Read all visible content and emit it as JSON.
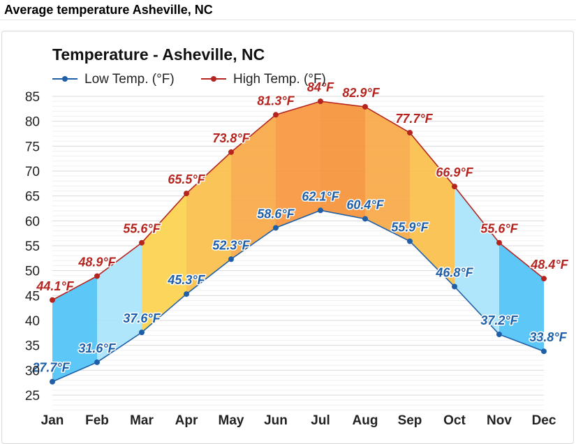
{
  "page": {
    "heading": "Average temperature Asheville, NC"
  },
  "chart_data": {
    "type": "line",
    "title": "Temperature - Asheville, NC",
    "categories": [
      "Jan",
      "Feb",
      "Mar",
      "Apr",
      "May",
      "Jun",
      "Jul",
      "Aug",
      "Sep",
      "Oct",
      "Nov",
      "Dec"
    ],
    "series": [
      {
        "name": "Low Temp. (°F)",
        "color": "#1e5fa8",
        "values": [
          27.7,
          31.6,
          37.6,
          45.3,
          52.3,
          58.6,
          62.1,
          60.4,
          55.9,
          46.8,
          37.2,
          33.8
        ],
        "labels": [
          "27.7°F",
          "31.6°F",
          "37.6°F",
          "45.3°F",
          "52.3°F",
          "58.6°F",
          "62.1°F",
          "60.4°F",
          "55.9°F",
          "46.8°F",
          "37.2°F",
          "33.8°F"
        ]
      },
      {
        "name": "High Temp. (°F)",
        "color": "#b5241f",
        "values": [
          44.1,
          48.9,
          55.6,
          65.5,
          73.8,
          81.3,
          84,
          82.9,
          77.7,
          66.9,
          55.6,
          48.4
        ],
        "labels": [
          "44.1°F",
          "48.9°F",
          "55.6°F",
          "65.5°F",
          "73.8°F",
          "81.3°F",
          "84°F",
          "82.9°F",
          "77.7°F",
          "66.9°F",
          "55.6°F",
          "48.4°F"
        ]
      }
    ],
    "yticks": [
      "25",
      "30",
      "35",
      "40",
      "45",
      "50",
      "55",
      "60",
      "65",
      "70",
      "75",
      "80",
      "85"
    ],
    "ylim": [
      22,
      86
    ],
    "grid": true,
    "legend_position": "top-left",
    "band_colors": [
      "#4fc3f7",
      "#a8e4fb",
      "#fcd34d",
      "#fbbf4a",
      "#f9a845",
      "#f7963e",
      "#f59238",
      "#f9a845",
      "#fbbf4a",
      "#a8e4fb",
      "#4fc3f7",
      "#4fc3f7"
    ]
  }
}
